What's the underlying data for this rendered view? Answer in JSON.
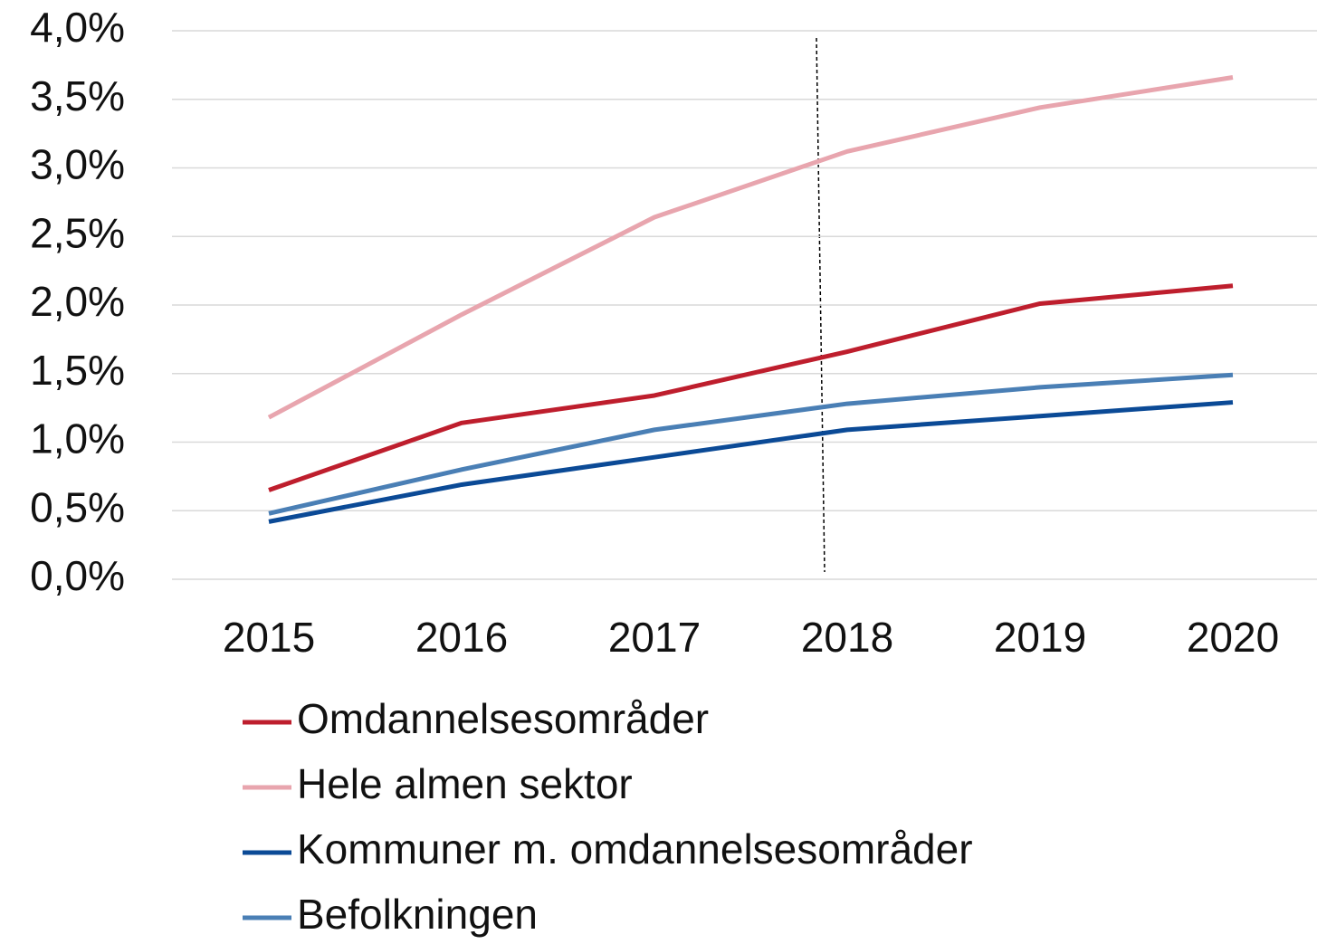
{
  "chart_data": {
    "type": "line",
    "categories": [
      "2015",
      "2016",
      "2017",
      "2018",
      "2019",
      "2020"
    ],
    "series": [
      {
        "name": "Omdannelsesområder",
        "color": "#be1e2d",
        "values": [
          0.65,
          1.14,
          1.34,
          1.66,
          2.01,
          2.14
        ]
      },
      {
        "name": "Hele almen sektor",
        "color": "#e8a5ae",
        "values": [
          1.18,
          1.93,
          2.64,
          3.12,
          3.44,
          3.66
        ]
      },
      {
        "name": "Kommuner m. omdannelsesområder",
        "color": "#0b4a96",
        "values": [
          0.42,
          0.69,
          0.89,
          1.09,
          1.19,
          1.29
        ]
      },
      {
        "name": "Befolkningen",
        "color": "#4a7fb5",
        "values": [
          0.48,
          0.8,
          1.09,
          1.28,
          1.4,
          1.49
        ]
      }
    ],
    "ylim": [
      0,
      4
    ],
    "yticks": [
      {
        "value": 0,
        "label": "0,0%"
      },
      {
        "value": 0.5,
        "label": "0,5%"
      },
      {
        "value": 1,
        "label": "1,0%"
      },
      {
        "value": 1.5,
        "label": "1,5%"
      },
      {
        "value": 2,
        "label": "2,0%"
      },
      {
        "value": 2.5,
        "label": "2,5%"
      },
      {
        "value": 3,
        "label": "3,0%"
      },
      {
        "value": 3.5,
        "label": "3,5%"
      },
      {
        "value": 4,
        "label": "4,0%"
      }
    ],
    "grid": true
  }
}
